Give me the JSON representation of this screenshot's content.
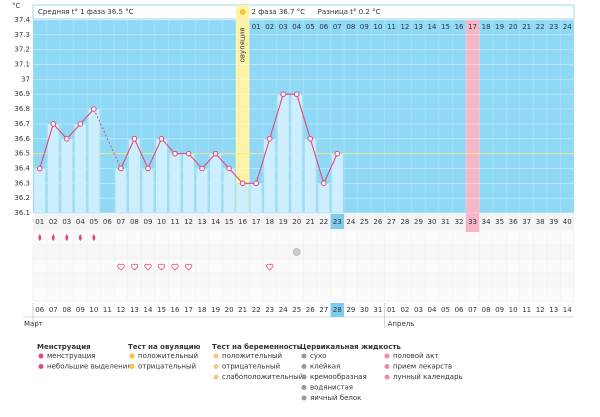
{
  "chart_data": {
    "type": "line",
    "y_unit": "°C",
    "stats": [
      "Средняя t° 1 фаза 36.5 °C",
      "2 фаза 36.7 °C",
      "Разница t° 0.2 °C"
    ],
    "categories": [
      "01",
      "02",
      "03",
      "04",
      "05",
      "06",
      "07",
      "08",
      "09",
      "10",
      "11",
      "12",
      "13",
      "14",
      "15",
      "16",
      "17",
      "18",
      "19",
      "20",
      "21",
      "22",
      "23",
      "24",
      "25",
      "26",
      "27",
      "28",
      "29",
      "30",
      "31",
      "32",
      "33",
      "34",
      "35",
      "36",
      "37",
      "38",
      "39",
      "40"
    ],
    "values": [
      36.4,
      36.7,
      36.6,
      36.7,
      36.8,
      null,
      36.4,
      36.6,
      36.4,
      36.6,
      36.5,
      36.5,
      36.4,
      36.5,
      36.4,
      36.3,
      36.3,
      36.6,
      36.9,
      36.9,
      36.6,
      36.3,
      36.5,
      null,
      null,
      null,
      null,
      null,
      null,
      null,
      null,
      null,
      null,
      null,
      null,
      null,
      null,
      null,
      null,
      null
    ],
    "color": "#e2497b",
    "bar_color": "#cdeefc",
    "background": "#8fd9f6",
    "ylim": [
      36.1,
      37.4
    ],
    "yticks": [
      36.1,
      36.2,
      36.3,
      36.4,
      36.5,
      36.6,
      36.7,
      36.8,
      36.9,
      37,
      37.1,
      37.2,
      37.3,
      37.4
    ],
    "cover_line": 36.5,
    "ovulation_day": 16,
    "ovulation_label": "овуляция",
    "phase2_labels": [
      "01",
      "02",
      "03",
      "04",
      "05",
      "06",
      "07",
      "08",
      "09",
      "10",
      "11",
      "12",
      "13",
      "14",
      "15",
      "16",
      "17",
      "18",
      "19",
      "20",
      "21",
      "22",
      "23",
      "24"
    ],
    "today": 23,
    "highlight_day": 33,
    "dates": [
      "06",
      "07",
      "08",
      "09",
      "10",
      "11",
      "12",
      "13",
      "14",
      "15",
      "16",
      "17",
      "18",
      "19",
      "20",
      "21",
      "22",
      "23",
      "24",
      "25",
      "26",
      "27",
      "28",
      "29",
      "30",
      "31",
      "01",
      "02",
      "03",
      "04",
      "05",
      "06",
      "07",
      "08",
      "09",
      "10",
      "11",
      "12",
      "13",
      "14"
    ],
    "red_dates": [
      4,
      5,
      11,
      18,
      19,
      25,
      26,
      32,
      33,
      39
    ],
    "months": [
      {
        "label": "Март",
        "start": 1
      },
      {
        "label": "Апрель",
        "start": 27
      }
    ],
    "events": [
      {
        "name": "менструация",
        "symbol": "drop",
        "days": [
          1,
          2,
          3,
          4,
          5
        ]
      },
      {
        "name": "отрицательный",
        "symbol": "circle",
        "days": [
          20
        ]
      },
      {
        "name": "половой акт",
        "symbol": "heart",
        "days": [
          7,
          8,
          9,
          10,
          11,
          12,
          18
        ]
      }
    ],
    "legend": [
      {
        "title": "Менструация",
        "items": [
          "менструация",
          "небольшие выделения"
        ]
      },
      {
        "title": "Тест на овуляцию",
        "items": [
          "положительный",
          "отрицательный"
        ]
      },
      {
        "title": "Тест на беременность",
        "items": [
          "положительный",
          "отрицательный",
          "слабоположительный"
        ]
      },
      {
        "title": "Цервикальная жидкость",
        "items": [
          "сухо",
          "клейкая",
          "кремообразная",
          "водянистая",
          "яичный белок"
        ]
      },
      {
        "items": [
          "половой акт",
          "прием лекарств",
          "лунный календарь"
        ]
      }
    ]
  }
}
